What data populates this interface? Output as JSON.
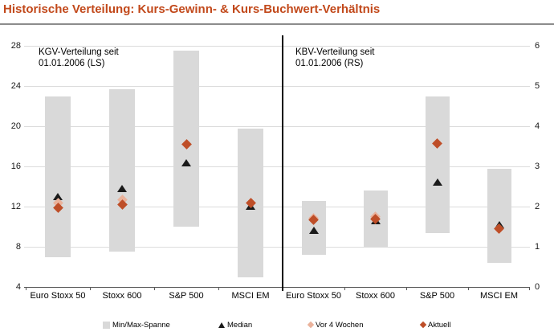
{
  "header": {
    "title": "Historische Verteilung: Kurs-Gewinn- & Kurs-Buchwert-Verhältnis"
  },
  "colors": {
    "title": "#C2491B",
    "bar": "#D9D9D9",
    "median": "#1A1A1A",
    "vor4w": "#EAB29B",
    "aktuell": "#BE4E28",
    "gridline": "#DCDCDC",
    "axis": "#595959",
    "divider": "#000000"
  },
  "chart_data": {
    "type": "range-bar",
    "grid": true,
    "legend_position": "bottom",
    "panels": [
      {
        "id": "kgv",
        "label_line1": "KGV-Verteilung seit",
        "label_line2": "01.01.2006 (LS)",
        "axis_side": "left",
        "ylim": [
          4,
          28
        ],
        "ticks": [
          28,
          24,
          20,
          16,
          12,
          8,
          4
        ],
        "categories": [
          "Euro Stoxx 50",
          "Stoxx 600",
          "S&P 500",
          "MSCI EM"
        ],
        "series": [
          {
            "name": "Min/Max-Spanne",
            "type": "range",
            "min": [
              7.0,
              7.5,
              10.0,
              5.0
            ],
            "max": [
              23.0,
              23.7,
              27.5,
              19.8
            ]
          },
          {
            "name": "Median",
            "type": "triangle",
            "values": [
              13.0,
              13.8,
              16.3,
              12.0
            ]
          },
          {
            "name": "Vor 4 Wochen",
            "type": "diamond-light",
            "values": [
              12.4,
              12.7,
              18.2,
              12.4
            ]
          },
          {
            "name": "Aktuell",
            "type": "diamond",
            "values": [
              11.9,
              12.2,
              18.2,
              12.4
            ]
          }
        ]
      },
      {
        "id": "kbv",
        "label_line1": "KBV-Verteilung seit",
        "label_line2": "01.01.2006 (RS)",
        "axis_side": "right",
        "ylim": [
          0,
          6
        ],
        "ticks": [
          6,
          5,
          4,
          3,
          2,
          1,
          0
        ],
        "categories": [
          "Euro Stoxx 50",
          "Stoxx 600",
          "S&P 500",
          "MSCI EM"
        ],
        "series": [
          {
            "name": "Min/Max-Spanne",
            "type": "range",
            "min": [
              0.8,
              1.0,
              1.35,
              0.6
            ],
            "max": [
              2.15,
              2.4,
              4.75,
              2.95
            ]
          },
          {
            "name": "Median",
            "type": "triangle",
            "values": [
              1.4,
              1.65,
              2.6,
              1.55
            ]
          },
          {
            "name": "Vor 4 Wochen",
            "type": "diamond-light",
            "values": [
              1.72,
              1.76,
              3.58,
              1.45
            ]
          },
          {
            "name": "Aktuell",
            "type": "diamond",
            "values": [
              1.68,
              1.7,
              3.58,
              1.45
            ]
          }
        ]
      }
    ],
    "legend": [
      {
        "label": "Min/Max-Spanne",
        "marker": "square"
      },
      {
        "label": "Median",
        "marker": "triangle"
      },
      {
        "label": "Vor 4 Wochen",
        "marker": "diamond-light"
      },
      {
        "label": "Aktuell",
        "marker": "diamond"
      }
    ]
  }
}
